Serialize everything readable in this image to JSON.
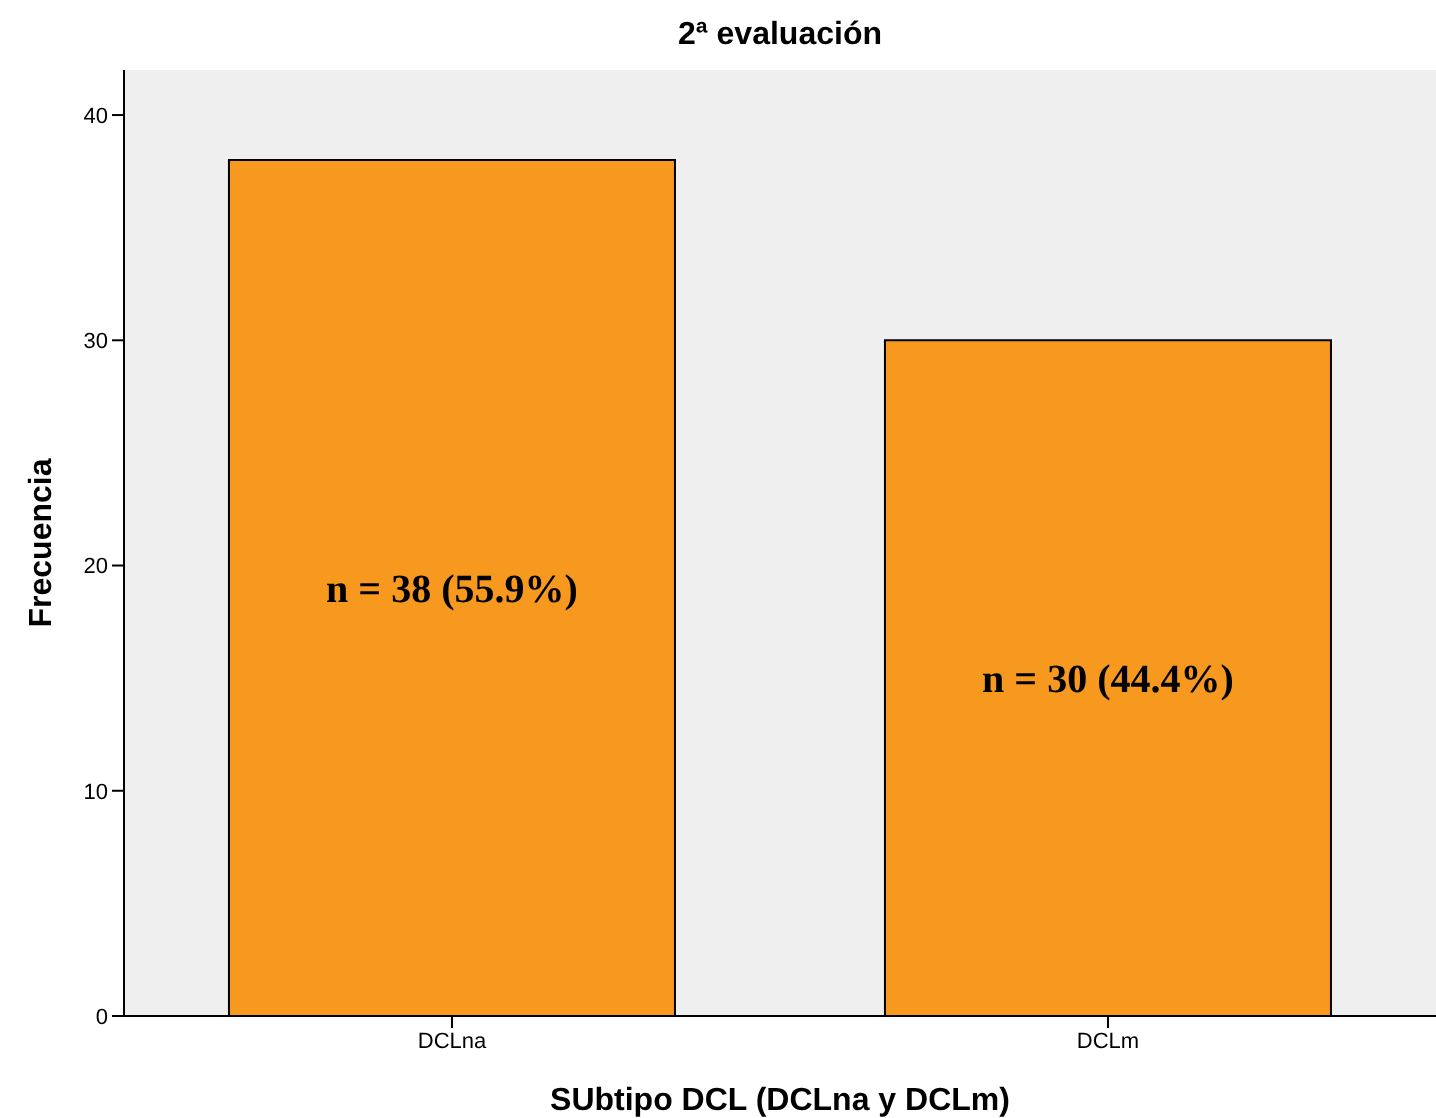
{
  "chart_data": {
    "type": "bar",
    "title": "2ª evaluación",
    "xlabel": "SUbtipo DCL (DCLna y DCLm)",
    "ylabel": "Frecuencia",
    "categories": [
      "DCLna",
      "DCLm"
    ],
    "values": [
      38,
      30
    ],
    "value_labels": [
      "n = 38 (55.9%)",
      "n = 30 (44.4%)"
    ],
    "color": "#f7991f",
    "ylim": [
      0,
      42
    ],
    "yticks": [
      0,
      10,
      20,
      30,
      40
    ],
    "grid": false
  }
}
